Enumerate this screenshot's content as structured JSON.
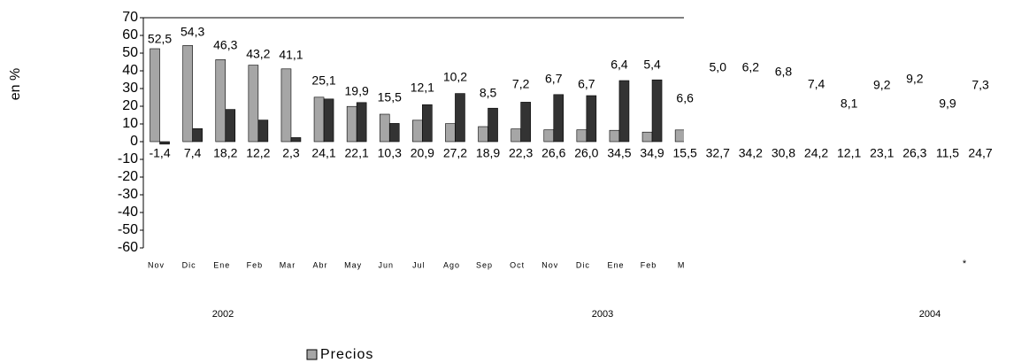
{
  "chart_data": {
    "type": "bar",
    "y_label": "en %",
    "categories": [
      "Nov",
      "Dic",
      "Ene",
      "Feb",
      "Mar",
      "Abr",
      "May",
      "Jun",
      "Jul",
      "Ago",
      "Sep",
      "Oct",
      "Nov",
      "Dic",
      "Ene",
      "Feb",
      "M",
      null,
      null,
      null,
      null,
      null,
      null,
      null,
      null,
      null
    ],
    "series": [
      {
        "name": "Precios",
        "color": "#a6a6a6",
        "values": [
          52.5,
          54.3,
          46.3,
          43.2,
          41.1,
          25.1,
          19.9,
          15.5,
          12.1,
          10.2,
          8.5,
          7.2,
          6.7,
          6.7,
          6.4,
          5.4,
          6.6,
          5.0,
          6.2,
          6.8,
          7.4,
          8.1,
          9.2,
          9.2,
          9.9,
          7.3
        ],
        "value_labels": [
          "52,5",
          "54,3",
          "46,3",
          "43,2",
          "41,1",
          "25,1",
          "19,9",
          "15,5",
          "12,1",
          "10,2",
          "8,5",
          "7,2",
          "6,7",
          "6,7",
          "6,4",
          "5,4",
          "6,6",
          "5,0",
          "6,2",
          "6,8",
          "7,4",
          "8,1",
          "9,2",
          "9,2",
          "9,9",
          "7,3"
        ]
      },
      {
        "color": "#333333",
        "values": [
          -1.4,
          7.4,
          18.2,
          12.2,
          2.3,
          24.1,
          22.1,
          10.3,
          20.9,
          27.2,
          18.9,
          22.3,
          26.6,
          26.0,
          34.5,
          34.9,
          15.5,
          32.7,
          34.2,
          30.8,
          24.2,
          12.1,
          23.1,
          26.3,
          11.5,
          24.7
        ],
        "value_labels": [
          "-1,4",
          "7,4",
          "18,2",
          "12,2",
          "2,3",
          "24,1",
          "22,1",
          "10,3",
          "20,9",
          "27,2",
          "18,9",
          "22,3",
          "26,6",
          "26,0",
          "34,5",
          "34,9",
          "15,5",
          "32,7",
          "34,2",
          "30,8",
          "24,2",
          "12,1",
          "23,1",
          "26,3",
          "11,5",
          "24,7"
        ]
      }
    ],
    "ylim": [
      -60,
      70
    ],
    "yticks": [
      70,
      60,
      50,
      40,
      30,
      20,
      10,
      0,
      -10,
      -20,
      -30,
      -40,
      -50,
      -60
    ],
    "group_labels": [
      "2002",
      "2003",
      "2004"
    ],
    "note": "*"
  }
}
